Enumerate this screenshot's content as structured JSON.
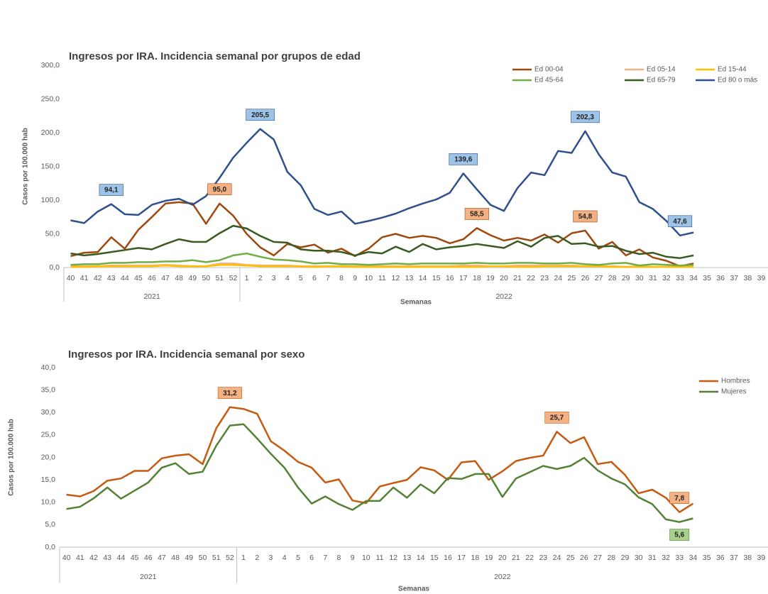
{
  "chart_data": [
    {
      "type": "line",
      "title": "Ingresos por IRA. Incidencia semanal por grupos de edad",
      "y_label": "Casos por 100.000 hab",
      "x_label": "Semanas",
      "categories": [
        "40",
        "41",
        "42",
        "43",
        "44",
        "45",
        "46",
        "47",
        "48",
        "49",
        "50",
        "51",
        "52",
        "1",
        "2",
        "3",
        "4",
        "5",
        "6",
        "7",
        "8",
        "9",
        "10",
        "11",
        "12",
        "13",
        "14",
        "15",
        "16",
        "17",
        "18",
        "19",
        "20",
        "21",
        "22",
        "23",
        "24",
        "25",
        "26",
        "27",
        "28",
        "29",
        "30",
        "31",
        "32",
        "33",
        "34",
        "35",
        "36",
        "37",
        "38",
        "39"
      ],
      "x_groups": [
        {
          "label": "2021",
          "span": 13
        },
        {
          "label": "2022",
          "span": 39
        }
      ],
      "ylim": [
        0,
        300
      ],
      "yticks": [
        {
          "value": 0,
          "label": "0,0"
        },
        {
          "value": 50,
          "label": "50,0"
        },
        {
          "value": 100,
          "label": "100,0"
        },
        {
          "value": 150,
          "label": "150,0"
        },
        {
          "value": 200,
          "label": "200,0"
        },
        {
          "value": 250,
          "label": "250,0"
        },
        {
          "value": 300,
          "label": "300,0"
        }
      ],
      "grid": false,
      "legend": "top-right",
      "series": [
        {
          "name": "Ed 00-04",
          "color": "#9e480e",
          "label_fill": "#f4b183",
          "values": [
            17,
            22,
            23,
            45,
            28,
            56,
            75,
            95,
            97,
            95,
            65,
            95,
            77,
            50,
            30,
            18,
            35,
            30,
            34,
            22,
            28,
            17,
            28,
            45,
            50,
            44,
            47,
            44,
            36,
            42,
            58.5,
            48,
            40,
            44,
            40,
            49,
            37,
            51,
            54.8,
            28,
            38,
            18,
            27,
            15,
            10,
            2,
            6,
            null,
            null,
            null,
            null,
            null
          ],
          "value_labels": [
            null,
            null,
            null,
            null,
            null,
            null,
            null,
            null,
            null,
            null,
            null,
            "95,0",
            null,
            null,
            null,
            null,
            null,
            null,
            null,
            null,
            null,
            null,
            null,
            null,
            null,
            null,
            null,
            null,
            null,
            null,
            "58,5",
            null,
            null,
            null,
            null,
            null,
            null,
            null,
            "54,8",
            null,
            null,
            null,
            null,
            null,
            null,
            null,
            null,
            null,
            null,
            null,
            null,
            null
          ]
        },
        {
          "name": "Ed 05-14",
          "color": "#f4b183",
          "values": [
            2,
            2,
            2,
            3,
            3,
            3,
            3,
            4,
            3,
            2,
            2,
            6,
            6,
            4,
            3,
            3,
            3,
            2,
            2,
            2,
            2,
            2,
            2,
            2,
            2,
            2,
            2,
            2,
            2,
            3,
            3,
            2,
            2,
            3,
            3,
            3,
            3,
            3,
            2,
            2,
            2,
            1,
            2,
            1,
            1,
            1,
            1,
            null,
            null,
            null,
            null,
            null
          ]
        },
        {
          "name": "Ed 15-44",
          "color": "#ffc000",
          "values": [
            1,
            1,
            2,
            2,
            2,
            2,
            2,
            3,
            2,
            2,
            2,
            4,
            4,
            3,
            2,
            2,
            2,
            2,
            1,
            2,
            2,
            1,
            1,
            1,
            1,
            1,
            1,
            1,
            1,
            1,
            1,
            2,
            2,
            1,
            1,
            2,
            2,
            2,
            2,
            2,
            1,
            1,
            1,
            1,
            1,
            1,
            1,
            null,
            null,
            null,
            null,
            null
          ]
        },
        {
          "name": "Ed 45-64",
          "color": "#70ad47",
          "values": [
            4,
            5,
            5,
            7,
            7,
            8,
            8,
            9,
            9,
            11,
            8,
            11,
            18,
            21,
            16,
            12,
            11,
            9,
            6,
            7,
            5,
            5,
            4,
            5,
            6,
            5,
            6,
            6,
            6,
            6,
            7,
            6,
            6,
            7,
            7,
            6,
            6,
            7,
            5,
            4,
            6,
            7,
            3,
            5,
            4,
            3,
            4,
            null,
            null,
            null,
            null,
            null
          ]
        },
        {
          "name": "Ed 65-79",
          "color": "#3a5a22",
          "values": [
            21,
            18,
            20,
            23,
            26,
            29,
            27,
            35,
            42,
            38,
            38,
            51,
            62,
            58,
            47,
            38,
            37,
            27,
            25,
            25,
            23,
            18,
            23,
            21,
            31,
            23,
            35,
            27,
            30,
            32,
            35,
            32,
            29,
            39,
            31,
            44,
            47,
            35,
            36,
            31,
            32,
            25,
            20,
            22,
            16,
            14,
            18,
            null,
            null,
            null,
            null,
            null
          ]
        },
        {
          "name": "Ed 80 o más",
          "color": "#2f4f8f",
          "label_fill": "#9dc3e6",
          "values": [
            70,
            66,
            83,
            94.1,
            79,
            78,
            93,
            99,
            102,
            93,
            106,
            133,
            163,
            185,
            205.5,
            190,
            142,
            122,
            87,
            78,
            83,
            65,
            69,
            74,
            80,
            88,
            95,
            101,
            111,
            139.6,
            116,
            93,
            84,
            118,
            141,
            137,
            173,
            170,
            202.3,
            168,
            141,
            135,
            97,
            87,
            69,
            47.6,
            52,
            null,
            null,
            null,
            null,
            null
          ],
          "value_labels": [
            null,
            null,
            null,
            "94,1",
            null,
            null,
            null,
            null,
            null,
            null,
            null,
            null,
            null,
            null,
            "205,5",
            null,
            null,
            null,
            null,
            null,
            null,
            null,
            null,
            null,
            null,
            null,
            null,
            null,
            null,
            "139,6",
            null,
            null,
            null,
            null,
            null,
            null,
            null,
            null,
            "202,3",
            null,
            null,
            null,
            null,
            null,
            null,
            "47,6",
            null,
            null,
            null,
            null,
            null,
            null
          ]
        }
      ]
    },
    {
      "type": "line",
      "title": "Ingresos por IRA. Incidencia semanal por sexo",
      "y_label": "Casos por 100.000 hab",
      "x_label": "Semanas",
      "categories": [
        "40",
        "41",
        "42",
        "43",
        "44",
        "45",
        "46",
        "47",
        "48",
        "49",
        "50",
        "51",
        "52",
        "1",
        "2",
        "3",
        "4",
        "5",
        "6",
        "7",
        "8",
        "9",
        "10",
        "11",
        "12",
        "13",
        "14",
        "15",
        "16",
        "17",
        "18",
        "19",
        "20",
        "21",
        "22",
        "23",
        "24",
        "25",
        "26",
        "27",
        "28",
        "29",
        "30",
        "31",
        "32",
        "33",
        "34",
        "35",
        "36",
        "37",
        "38",
        "39"
      ],
      "x_groups": [
        {
          "label": "2021",
          "span": 13
        },
        {
          "label": "2022",
          "span": 39
        }
      ],
      "ylim": [
        0,
        40
      ],
      "yticks": [
        {
          "value": 0,
          "label": "0,0"
        },
        {
          "value": 5,
          "label": "5,0"
        },
        {
          "value": 10,
          "label": "10,0"
        },
        {
          "value": 15,
          "label": "15,0"
        },
        {
          "value": 20,
          "label": "20,0"
        },
        {
          "value": 25,
          "label": "25,0"
        },
        {
          "value": 30,
          "label": "30,0"
        },
        {
          "value": 35,
          "label": "35,0"
        },
        {
          "value": 40,
          "label": "40,0"
        }
      ],
      "grid": false,
      "legend": "top-right",
      "series": [
        {
          "name": "Hombres",
          "color": "#c55a11",
          "label_fill": "#f4b183",
          "values": [
            11.7,
            11.3,
            12.5,
            14.8,
            15.3,
            17,
            17,
            19.8,
            20.4,
            20.7,
            18.5,
            26.5,
            31.2,
            30.8,
            29.7,
            23.6,
            21.5,
            19,
            17.7,
            14.4,
            15.1,
            10.4,
            9.8,
            13.5,
            14.3,
            15,
            17.8,
            17.1,
            15,
            18.9,
            19.2,
            15,
            16.9,
            19.2,
            19.9,
            20.4,
            25.7,
            23.2,
            24.5,
            18.5,
            19,
            16.1,
            12,
            12.8,
            11,
            7.8,
            9.7,
            null,
            null,
            null,
            null,
            null
          ],
          "value_labels": [
            null,
            null,
            null,
            null,
            null,
            null,
            null,
            null,
            null,
            null,
            null,
            null,
            "31,2",
            null,
            null,
            null,
            null,
            null,
            null,
            null,
            null,
            null,
            null,
            null,
            null,
            null,
            null,
            null,
            null,
            null,
            null,
            null,
            null,
            null,
            null,
            null,
            "25,7",
            null,
            null,
            null,
            null,
            null,
            null,
            null,
            null,
            "7,8",
            null,
            null,
            null,
            null,
            null,
            null
          ]
        },
        {
          "name": "Mujeres",
          "color": "#548235",
          "label_fill": "#a9d18e",
          "label_position": "below",
          "values": [
            8.5,
            9,
            10.9,
            13.3,
            10.8,
            12.6,
            14.4,
            17.7,
            18.7,
            16.3,
            16.8,
            22.6,
            27.1,
            27.4,
            24.2,
            20.8,
            17.7,
            13.3,
            9.7,
            11.3,
            9.6,
            8.3,
            10.3,
            10.3,
            13.3,
            11,
            14,
            12,
            15.4,
            15.2,
            16.3,
            16.3,
            11.2,
            15.3,
            16.7,
            18.1,
            17.4,
            18.1,
            19.9,
            17.1,
            15.3,
            14,
            11.1,
            9.6,
            6.2,
            5.6,
            6.4,
            null,
            null,
            null,
            null,
            null
          ],
          "value_labels": [
            null,
            null,
            null,
            null,
            null,
            null,
            null,
            null,
            null,
            null,
            null,
            null,
            null,
            null,
            null,
            null,
            null,
            null,
            null,
            null,
            null,
            null,
            null,
            null,
            null,
            null,
            null,
            null,
            null,
            null,
            null,
            null,
            null,
            null,
            null,
            null,
            null,
            null,
            null,
            null,
            null,
            null,
            null,
            null,
            null,
            "5,6",
            null,
            null,
            null,
            null,
            null,
            null
          ]
        }
      ]
    }
  ]
}
